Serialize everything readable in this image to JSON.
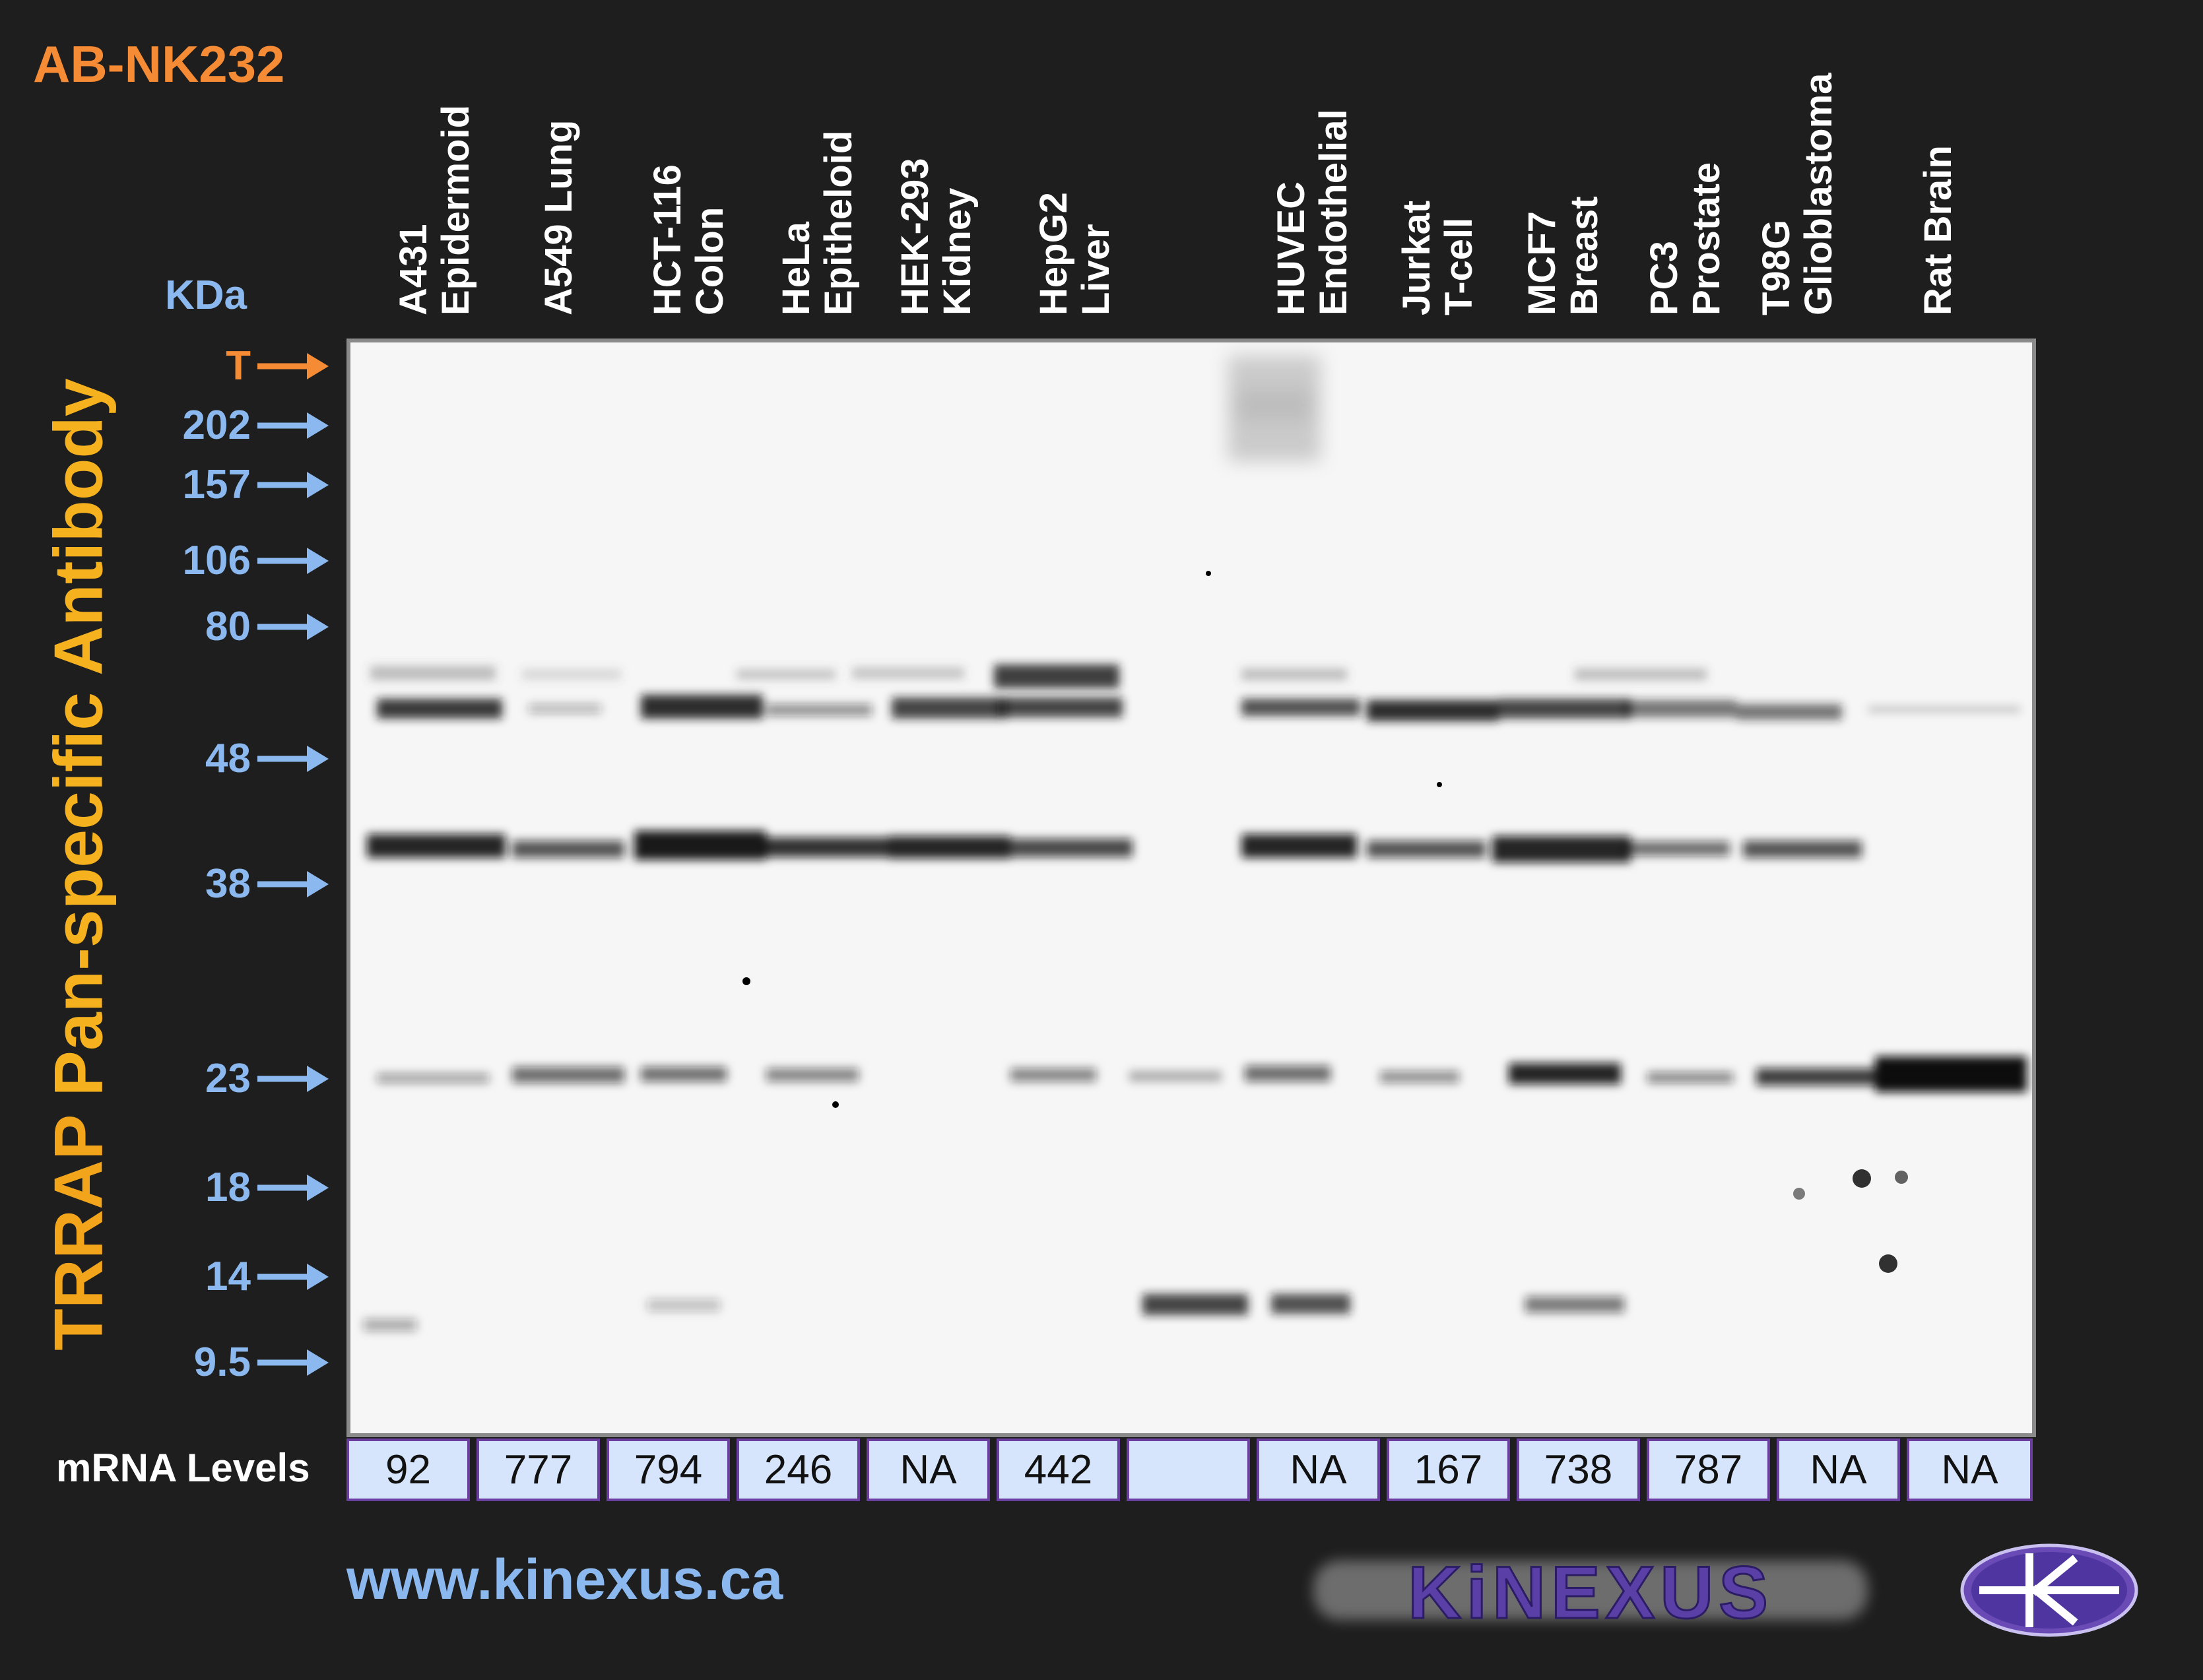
{
  "product_code": "AB-NK232",
  "kda_label": "KDa",
  "antibody_title_prefix": "TRRAP",
  "antibody_title_rest": " Pan-specific Antibody",
  "target_marker": "T",
  "markers": [
    "202",
    "157",
    "106",
    "80",
    "48",
    "38",
    "23",
    "18",
    "14",
    "9.5"
  ],
  "lanes": [
    {
      "line1": "A431",
      "line2": "Epidermoid",
      "mrna": "92"
    },
    {
      "line1": "A549 Lung",
      "line2": "",
      "mrna": "777"
    },
    {
      "line1": "HCT-116",
      "line2": "Colon",
      "mrna": "794"
    },
    {
      "line1": "HeLa",
      "line2": "Epitheloid",
      "mrna": "246"
    },
    {
      "line1": "HEK-293",
      "line2": "Kidney",
      "mrna": "NA"
    },
    {
      "line1": "HepG2",
      "line2": "Liver",
      "mrna": "442"
    },
    {
      "line1": "",
      "line2": "",
      "mrna": ""
    },
    {
      "line1": "HUVEC",
      "line2": "Endothelial",
      "mrna": "NA"
    },
    {
      "line1": "Jurkat",
      "line2": "T-cell",
      "mrna": "167"
    },
    {
      "line1": "MCF7",
      "line2": "Breast",
      "mrna": "738"
    },
    {
      "line1": "PC3",
      "line2": "Prostate",
      "mrna": "787"
    },
    {
      "line1": "T98G",
      "line2": "Glioblastoma",
      "mrna": "NA"
    },
    {
      "line1": "Rat Brain",
      "line2": "",
      "mrna": "NA"
    }
  ],
  "mrna_label": "mRNA Levels",
  "website": "www.kinexus.ca",
  "brand": "KiNEXUS",
  "colors": {
    "background": "#1e1e1e",
    "product_code": "#f58b34",
    "title": "#f5b21e",
    "marker_text": "#8bb8ee",
    "mrna_box": "#d6e5fb",
    "mrna_border": "#6a3fa0",
    "brand": "#6a4bb5"
  }
}
